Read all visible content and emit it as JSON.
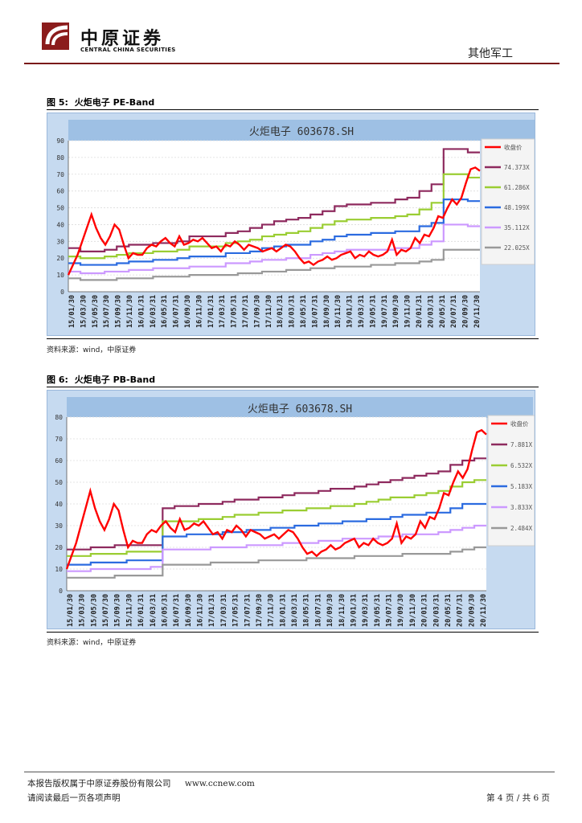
{
  "header": {
    "brand_cn": "中原证券",
    "brand_en": "CENTRAL CHINA SECURITIES",
    "section": "其他军工"
  },
  "figure5": {
    "label": "图 5:",
    "title": "火炬电子 PE-Band",
    "source": "资料来源：wind，中原证券",
    "chart_data": {
      "type": "line",
      "title": "火炬电子 603678.SH",
      "y_ticks": [
        "0",
        "10",
        "20",
        "30",
        "40",
        "50",
        "60",
        "70",
        "80",
        "90"
      ],
      "ylim": [
        0,
        90
      ],
      "x_labels": [
        "15/01/30",
        "15/03/30",
        "15/05/30",
        "15/07/30",
        "15/09/30",
        "15/11/30",
        "16/01/31",
        "16/03/31",
        "16/05/31",
        "16/07/31",
        "16/09/30",
        "16/11/30",
        "17/01/31",
        "17/03/31",
        "17/05/31",
        "17/07/31",
        "17/09/30",
        "17/11/30",
        "18/01/31",
        "18/03/31",
        "18/05/31",
        "18/07/31",
        "18/09/30",
        "18/11/30",
        "19/01/31",
        "19/03/31",
        "19/05/31",
        "19/07/31",
        "19/09/30",
        "19/11/30",
        "20/01/31",
        "20/03/31",
        "20/05/31",
        "20/07/31",
        "20/09/30",
        "20/11/30"
      ],
      "legend": [
        "收盘价",
        "74.373X",
        "61.286X",
        "48.199X",
        "35.112X",
        "22.025X"
      ],
      "colors": [
        "#ff0000",
        "#8e2a5e",
        "#9acd32",
        "#2b6be0",
        "#cc99ff",
        "#999999"
      ],
      "series": [
        {
          "name": "74.373X",
          "steps": [
            26,
            24,
            24,
            25,
            27,
            28,
            28,
            29,
            29,
            30,
            33,
            33,
            33,
            35,
            36,
            38,
            40,
            42,
            43,
            44,
            46,
            48,
            51,
            52,
            52,
            53,
            53,
            55,
            56,
            60,
            64,
            85,
            85,
            83
          ]
        },
        {
          "name": "61.286X",
          "steps": [
            21,
            20,
            20,
            21,
            22,
            23,
            23,
            24,
            24,
            25,
            27,
            27,
            27,
            29,
            30,
            31,
            33,
            34,
            35,
            36,
            38,
            40,
            42,
            43,
            43,
            44,
            44,
            45,
            46,
            49,
            53,
            70,
            70,
            68
          ]
        },
        {
          "name": "48.199X",
          "steps": [
            17,
            16,
            16,
            16,
            17,
            18,
            18,
            19,
            19,
            20,
            21,
            21,
            21,
            23,
            23,
            24,
            26,
            27,
            28,
            28,
            30,
            31,
            33,
            34,
            34,
            35,
            35,
            36,
            36,
            39,
            41,
            55,
            55,
            54
          ]
        },
        {
          "name": "35.112X",
          "steps": [
            12,
            11,
            11,
            12,
            12,
            13,
            13,
            14,
            14,
            14,
            15,
            15,
            15,
            17,
            17,
            18,
            19,
            19,
            20,
            20,
            22,
            23,
            24,
            25,
            25,
            25,
            25,
            26,
            26,
            28,
            30,
            40,
            40,
            39
          ]
        },
        {
          "name": "22.025X",
          "steps": [
            8,
            7,
            7,
            7,
            8,
            8,
            8,
            9,
            9,
            9,
            10,
            10,
            10,
            10,
            11,
            11,
            12,
            12,
            13,
            13,
            14,
            14,
            15,
            15,
            15,
            16,
            16,
            17,
            17,
            18,
            19,
            25,
            25,
            25
          ]
        },
        {
          "name": "收盘价",
          "values": [
            10,
            16,
            22,
            30,
            38,
            46,
            38,
            32,
            28,
            33,
            40,
            37,
            28,
            20,
            23,
            22,
            22,
            26,
            28,
            27,
            30,
            32,
            29,
            27,
            33,
            28,
            29,
            31,
            30,
            32,
            29,
            26,
            27,
            24,
            28,
            27,
            30,
            28,
            25,
            28,
            27,
            26,
            24,
            25,
            26,
            24,
            26,
            28,
            27,
            24,
            20,
            17,
            18,
            16,
            18,
            19,
            21,
            19,
            20,
            22,
            23,
            24,
            20,
            22,
            21,
            24,
            22,
            21,
            22,
            24,
            31,
            22,
            25,
            24,
            26,
            32,
            29,
            34,
            33,
            38,
            45,
            44,
            50,
            55,
            52,
            56,
            65,
            73,
            74,
            72
          ]
        }
      ]
    }
  },
  "figure6": {
    "label": "图 6:",
    "title": "火炬电子 PB-Band",
    "source": "资料来源：wind，中原证券",
    "chart_data": {
      "type": "line",
      "title": "火炬电子 603678.SH",
      "y_ticks": [
        "0",
        "10",
        "20",
        "30",
        "40",
        "50",
        "60",
        "70",
        "80"
      ],
      "ylim": [
        0,
        80
      ],
      "x_labels": [
        "15/01/30",
        "15/03/30",
        "15/05/30",
        "15/07/30",
        "15/09/30",
        "15/11/30",
        "16/01/31",
        "16/03/31",
        "16/05/31",
        "16/07/31",
        "16/09/30",
        "16/11/30",
        "17/01/31",
        "17/03/31",
        "17/05/31",
        "17/07/31",
        "17/09/30",
        "17/11/30",
        "18/01/31",
        "18/03/31",
        "18/05/31",
        "18/07/31",
        "18/09/30",
        "18/11/30",
        "19/01/31",
        "19/03/31",
        "19/05/31",
        "19/07/31",
        "19/09/30",
        "19/11/30",
        "20/01/31",
        "20/03/31",
        "20/05/31",
        "20/07/31",
        "20/09/30",
        "20/11/30"
      ],
      "legend": [
        "收盘价",
        "7.881X",
        "6.532X",
        "5.183X",
        "3.833X",
        "2.484X"
      ],
      "colors": [
        "#ff0000",
        "#8e2a5e",
        "#9acd32",
        "#2b6be0",
        "#cc99ff",
        "#999999"
      ],
      "series": [
        {
          "name": "7.881X",
          "steps": [
            19,
            19,
            20,
            20,
            21,
            21,
            21,
            21,
            38,
            39,
            39,
            40,
            40,
            41,
            42,
            42,
            43,
            43,
            44,
            45,
            45,
            46,
            47,
            47,
            48,
            49,
            50,
            51,
            52,
            53,
            54,
            55,
            58,
            60,
            61
          ]
        },
        {
          "name": "6.532X",
          "steps": [
            16,
            16,
            17,
            17,
            17,
            18,
            18,
            18,
            32,
            32,
            32,
            33,
            33,
            34,
            35,
            35,
            36,
            36,
            37,
            37,
            38,
            38,
            39,
            39,
            40,
            41,
            42,
            43,
            43,
            44,
            45,
            46,
            48,
            50,
            51
          ]
        },
        {
          "name": "5.183X",
          "steps": [
            12,
            12,
            13,
            13,
            13,
            14,
            14,
            14,
            25,
            25,
            26,
            26,
            26,
            27,
            27,
            28,
            28,
            29,
            29,
            30,
            30,
            31,
            31,
            32,
            32,
            33,
            33,
            34,
            35,
            35,
            36,
            36,
            38,
            40,
            40
          ]
        },
        {
          "name": "3.833X",
          "steps": [
            9,
            9,
            10,
            10,
            10,
            10,
            10,
            11,
            19,
            19,
            19,
            19,
            20,
            20,
            20,
            21,
            21,
            21,
            22,
            22,
            22,
            23,
            23,
            24,
            24,
            24,
            25,
            25,
            26,
            26,
            26,
            27,
            28,
            29,
            30
          ]
        },
        {
          "name": "2.484X",
          "steps": [
            6,
            6,
            6,
            6,
            7,
            7,
            7,
            7,
            12,
            12,
            12,
            12,
            13,
            13,
            13,
            13,
            14,
            14,
            14,
            14,
            15,
            15,
            15,
            15,
            16,
            16,
            16,
            16,
            17,
            17,
            17,
            17,
            18,
            19,
            20
          ]
        },
        {
          "name": "收盘价",
          "values": [
            10,
            16,
            22,
            30,
            38,
            46,
            38,
            32,
            28,
            33,
            40,
            37,
            28,
            20,
            23,
            22,
            22,
            26,
            28,
            27,
            30,
            32,
            29,
            27,
            33,
            28,
            29,
            31,
            30,
            32,
            29,
            26,
            27,
            24,
            28,
            27,
            30,
            28,
            25,
            28,
            27,
            26,
            24,
            25,
            26,
            24,
            26,
            28,
            27,
            24,
            20,
            17,
            18,
            16,
            18,
            19,
            21,
            19,
            20,
            22,
            23,
            24,
            20,
            22,
            21,
            24,
            22,
            21,
            22,
            24,
            31,
            22,
            25,
            24,
            26,
            32,
            29,
            34,
            33,
            38,
            45,
            44,
            50,
            55,
            52,
            56,
            65,
            73,
            74,
            72
          ]
        }
      ]
    }
  },
  "footer": {
    "copyright": "本报告版权属于中原证券股份有限公司",
    "website": "www.ccnew.com",
    "disclaimer": "请阅读最后一页各项声明",
    "page_label": "第 4 页 / 共 6 页"
  }
}
